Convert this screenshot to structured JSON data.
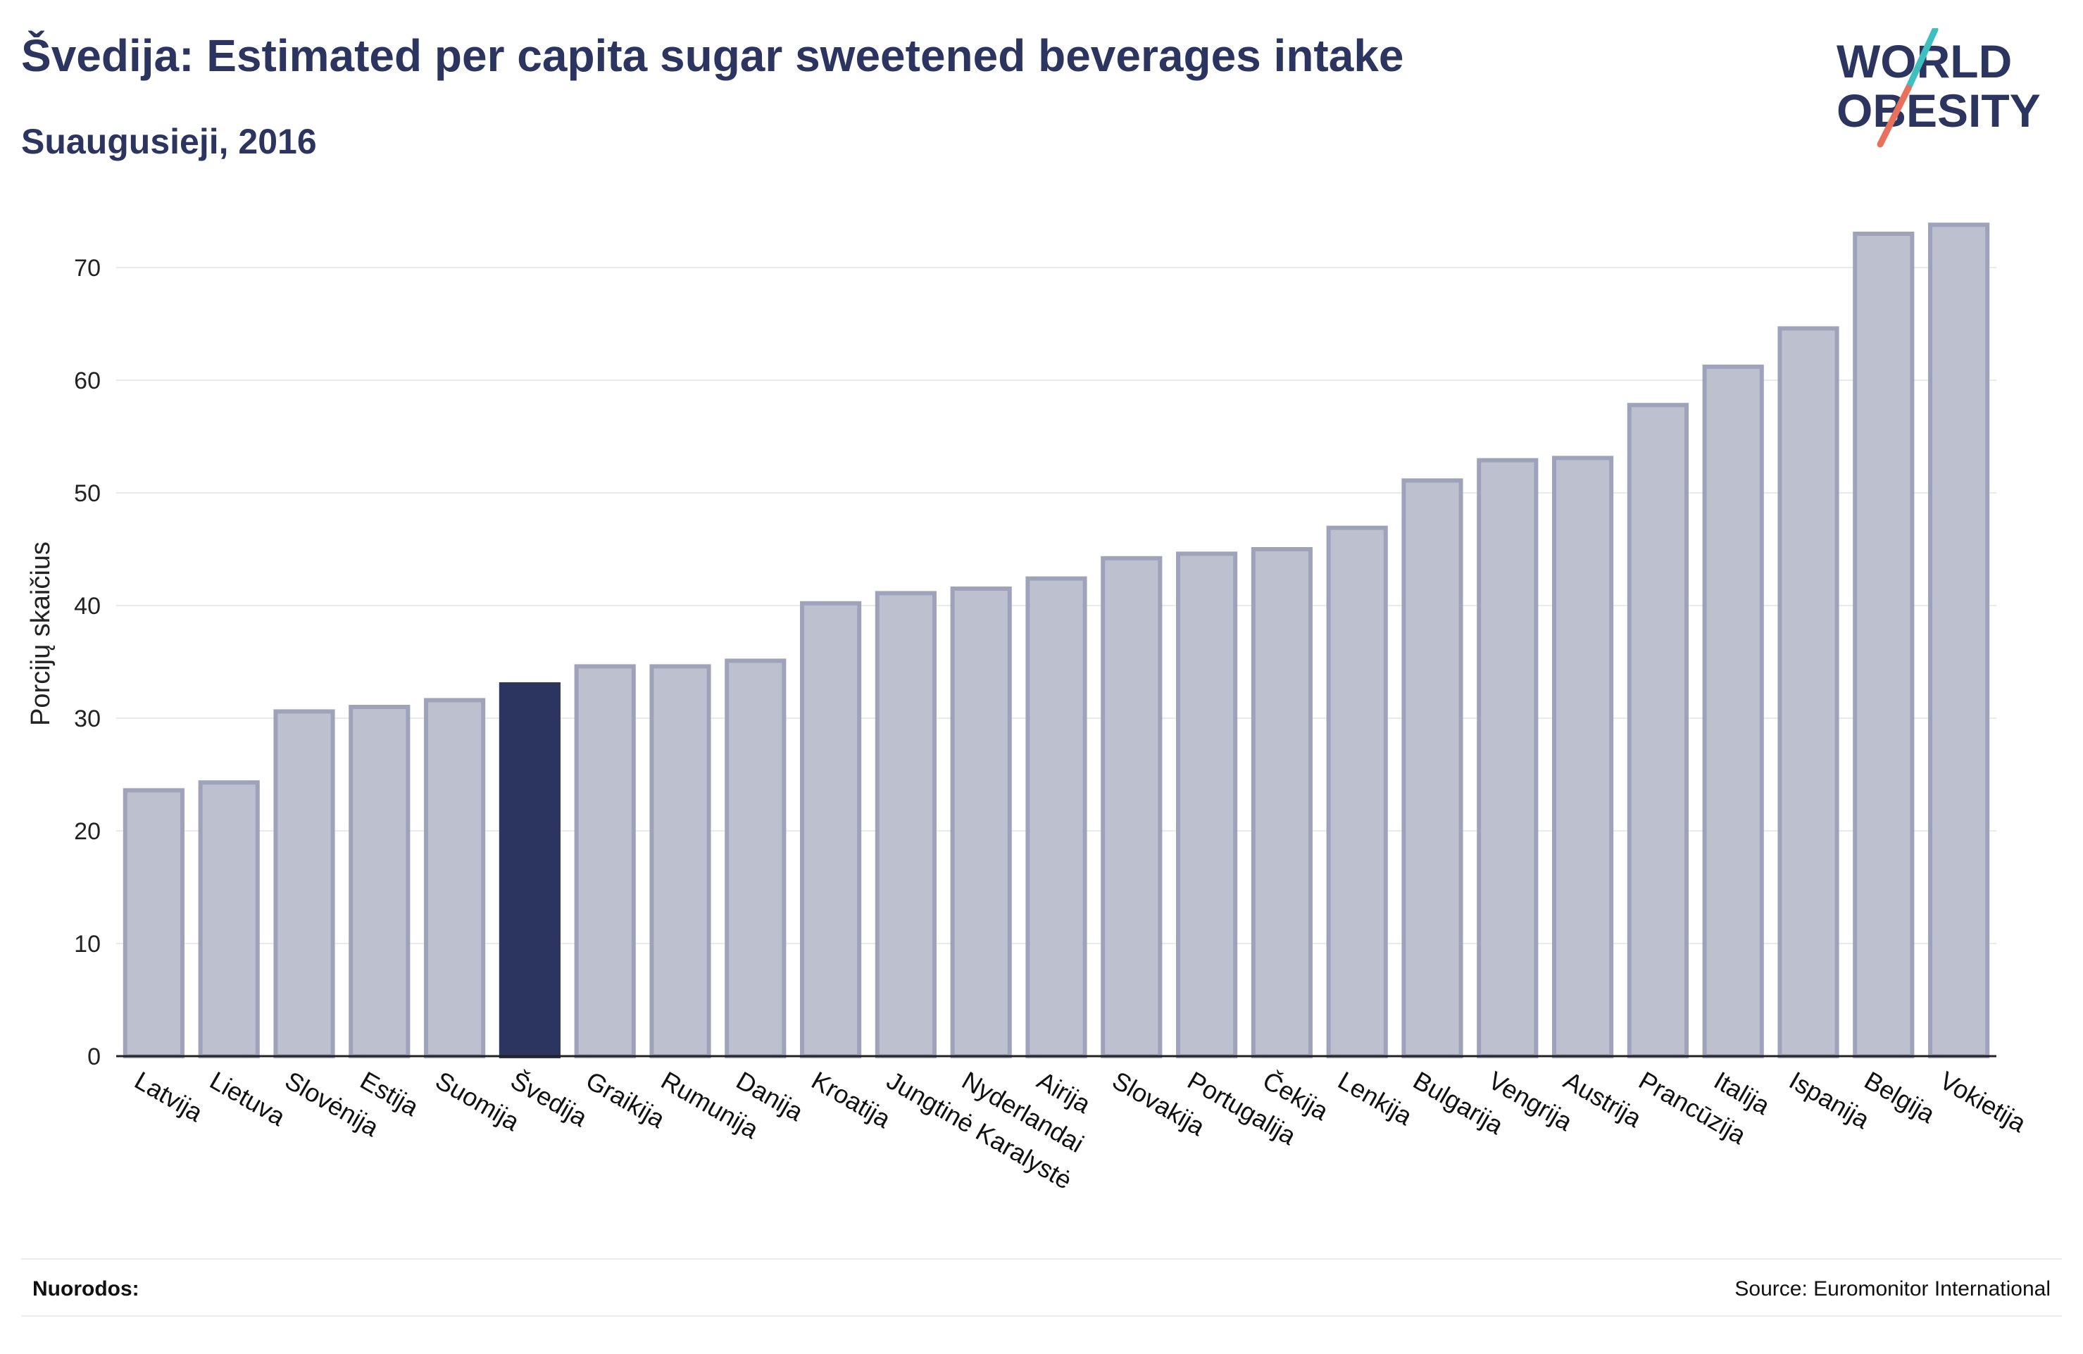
{
  "header": {
    "title": "Švedija: Estimated per capita sugar sweetened beverages intake",
    "subtitle": "Suaugusieji, 2016"
  },
  "logo": {
    "line1": "WORLD",
    "line2": "OBESITY"
  },
  "footer": {
    "references_label": "Nuorodos:",
    "source": "Source: Euromonitor International"
  },
  "colors": {
    "highlight": "#2b3560",
    "bar_fill": "#bcc0cf",
    "bar_stroke": "#9ea3bb",
    "logo_teal": "#3fbfbf",
    "logo_coral": "#e8705c"
  },
  "chart_data": {
    "type": "bar",
    "ylabel": "Porcijų skaičius",
    "xlabel": "",
    "ylim": [
      0,
      75
    ],
    "yticks": [
      0,
      10,
      20,
      30,
      40,
      50,
      60,
      70
    ],
    "grid": true,
    "highlight_category": "Švedija",
    "categories": [
      "Latvija",
      "Lietuva",
      "Slovėnija",
      "Estija",
      "Suomija",
      "Švedija",
      "Graikija",
      "Rumunija",
      "Danija",
      "Kroatija",
      "Jungtinė Karalystė",
      "Nyderlandai",
      "Airija",
      "Slovakija",
      "Portugalija",
      "Čekija",
      "Lenkija",
      "Bulgarija",
      "Vengrija",
      "Austrija",
      "Prancūzija",
      "Italija",
      "Ispanija",
      "Belgija",
      "Vokietija"
    ],
    "values": [
      23.6,
      24.3,
      30.6,
      31.0,
      31.6,
      33.0,
      34.6,
      34.6,
      35.1,
      40.2,
      41.1,
      41.5,
      42.4,
      44.2,
      44.6,
      45.0,
      46.9,
      51.1,
      52.9,
      53.1,
      57.8,
      61.2,
      64.6,
      73.0,
      73.8
    ]
  }
}
